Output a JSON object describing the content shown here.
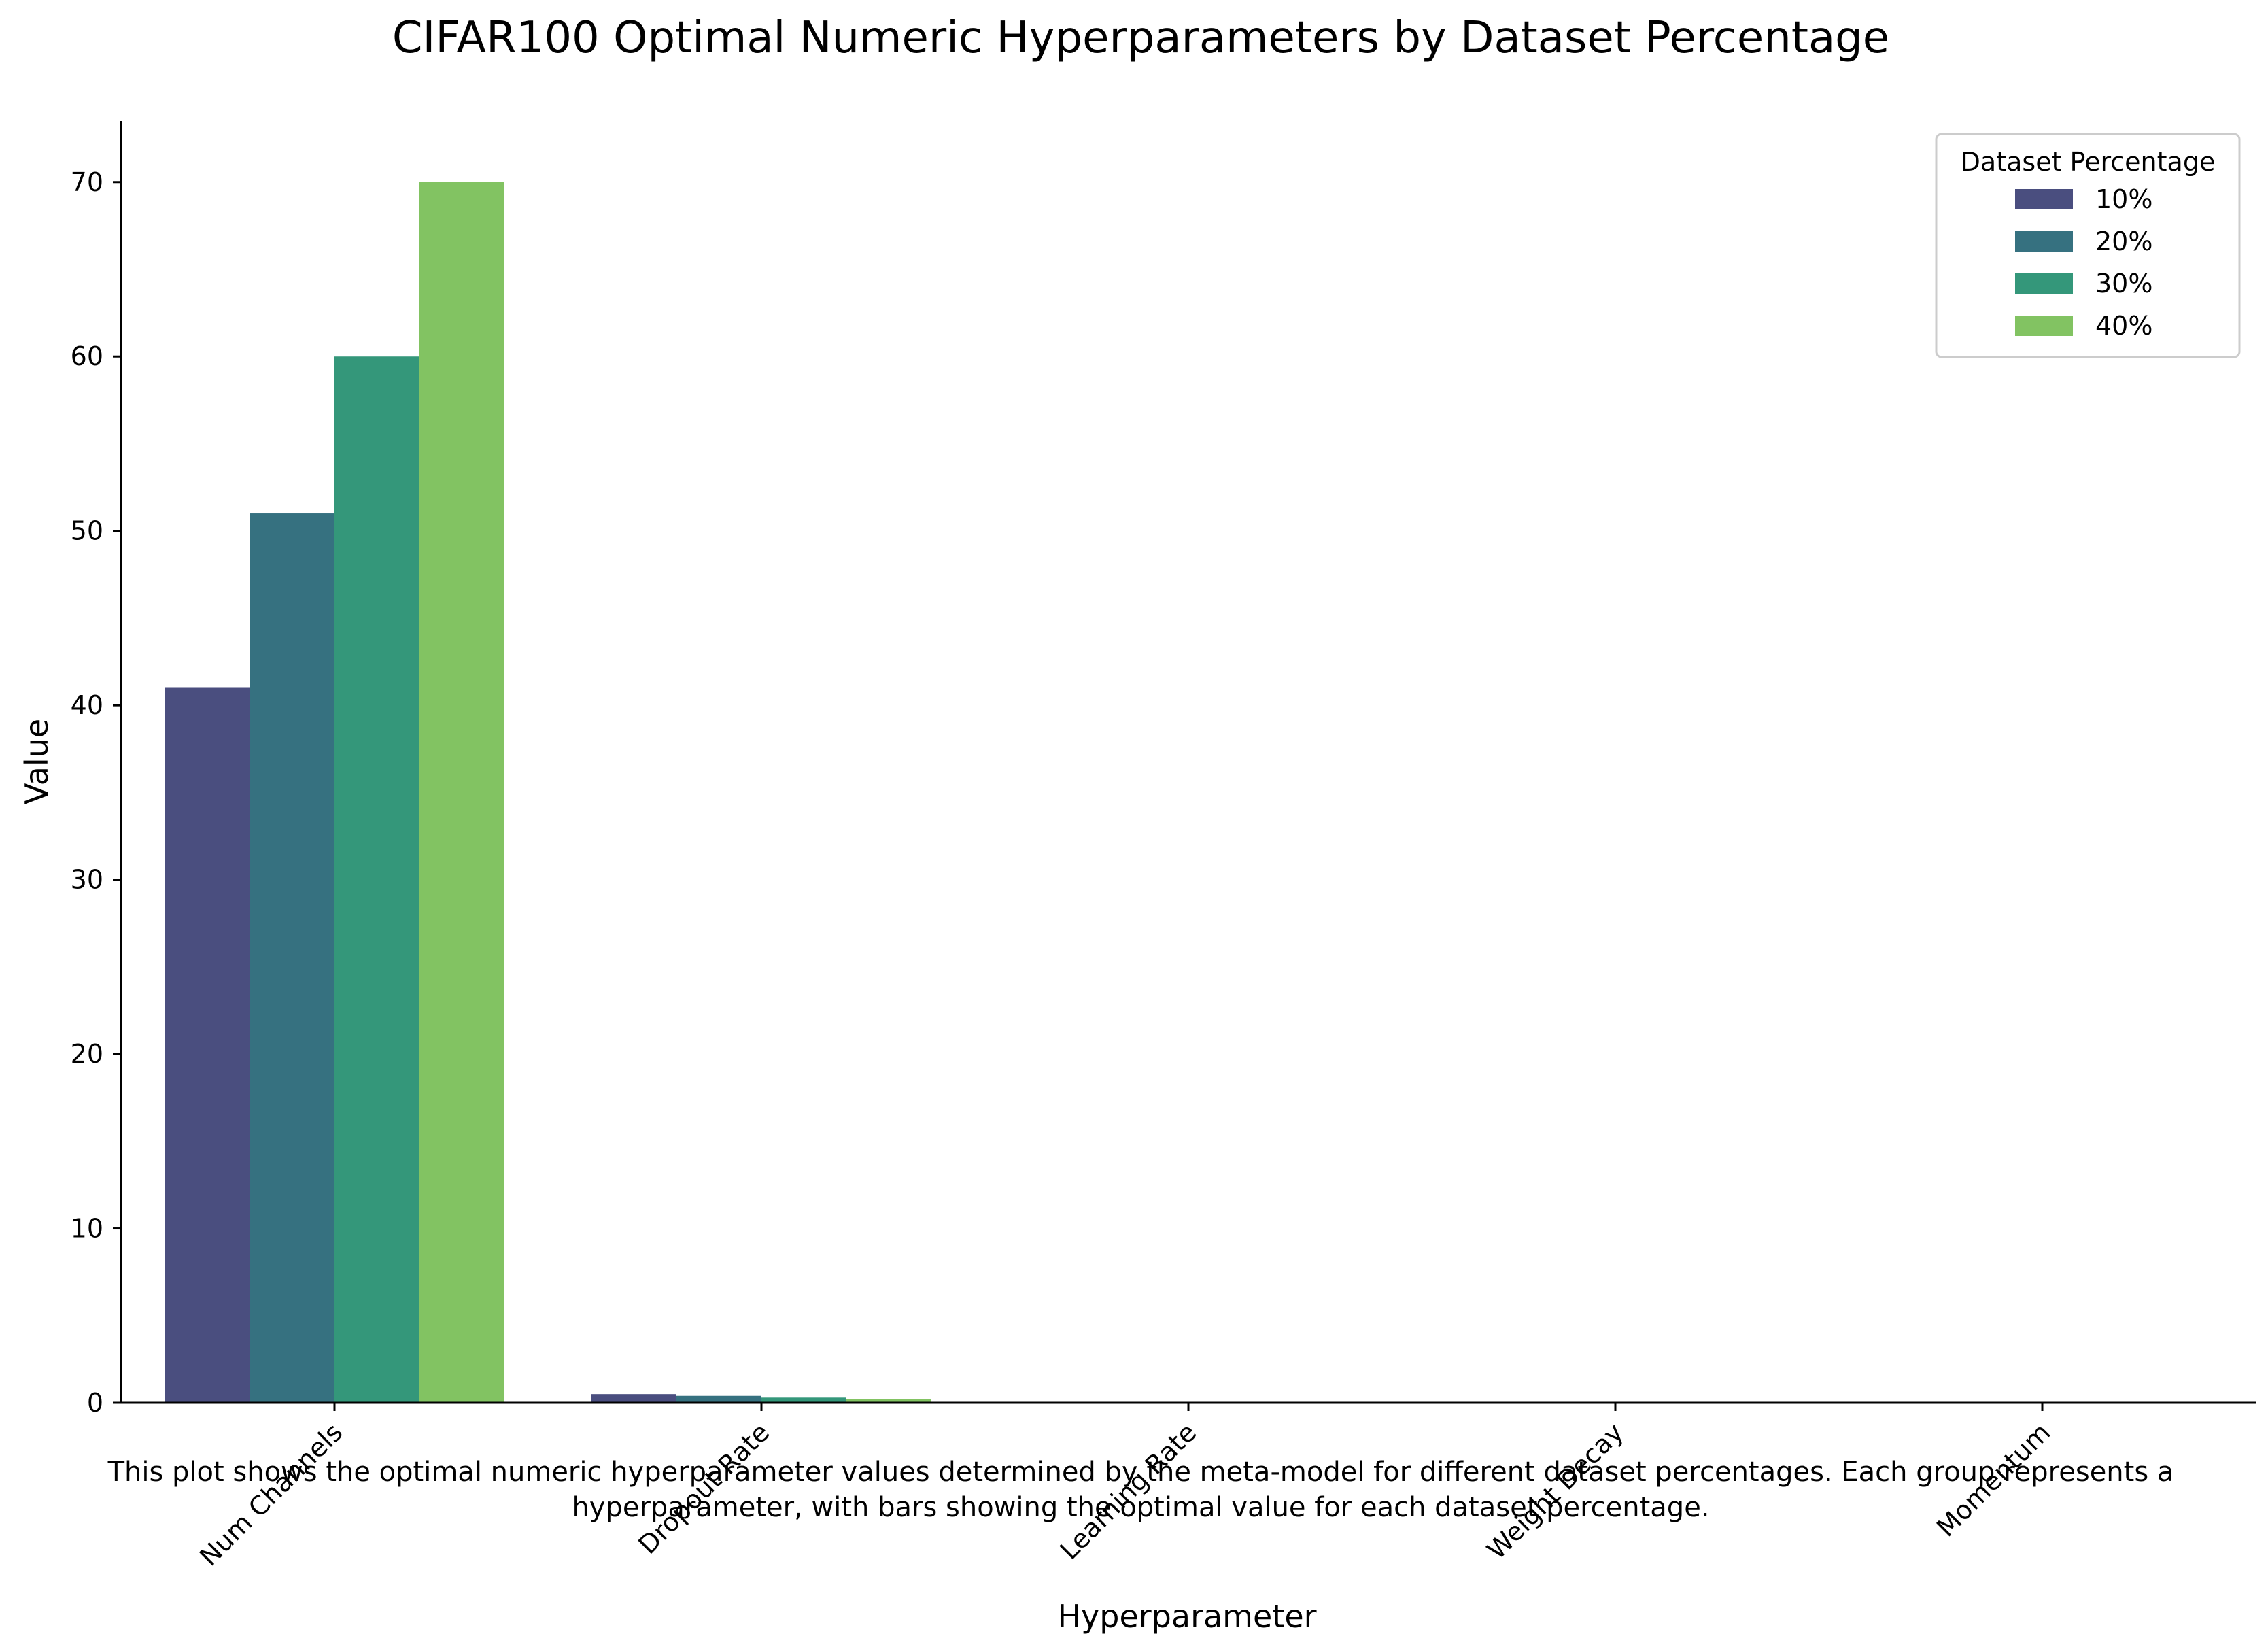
{
  "chart_data": {
    "type": "bar",
    "title": "CIFAR100 Optimal Numeric Hyperparameters by Dataset Percentage",
    "xlabel": "Hyperparameter",
    "ylabel": "Value",
    "categories": [
      "Num Channels",
      "Dropout Rate",
      "Learning Rate",
      "Weight Decay",
      "Momentum"
    ],
    "series": [
      {
        "name": "10%",
        "color": "#4a4e7f",
        "values": [
          41,
          0.5,
          0.001,
          0.0001,
          0.0
        ]
      },
      {
        "name": "20%",
        "color": "#367180",
        "values": [
          51,
          0.4,
          0.001,
          0.0001,
          0.0
        ]
      },
      {
        "name": "30%",
        "color": "#34977a",
        "values": [
          60,
          0.3,
          0.001,
          0.0001,
          0.0
        ]
      },
      {
        "name": "40%",
        "color": "#82c362",
        "values": [
          70,
          0.2,
          0.001,
          0.0001,
          0.0
        ]
      }
    ],
    "ylim": [
      0,
      73.5
    ],
    "yticks": [
      0,
      10,
      20,
      30,
      40,
      50,
      60,
      70
    ],
    "legend": {
      "title": "Dataset Percentage",
      "placement": "top-right"
    },
    "grid": false,
    "x_tick_rotation": "45 degrees",
    "caption": "This plot shows the optimal numeric hyperparameter values determined by the meta-model for different dataset percentages. Each group represents a hyperparameter, with bars showing the optimal value for each dataset percentage."
  }
}
